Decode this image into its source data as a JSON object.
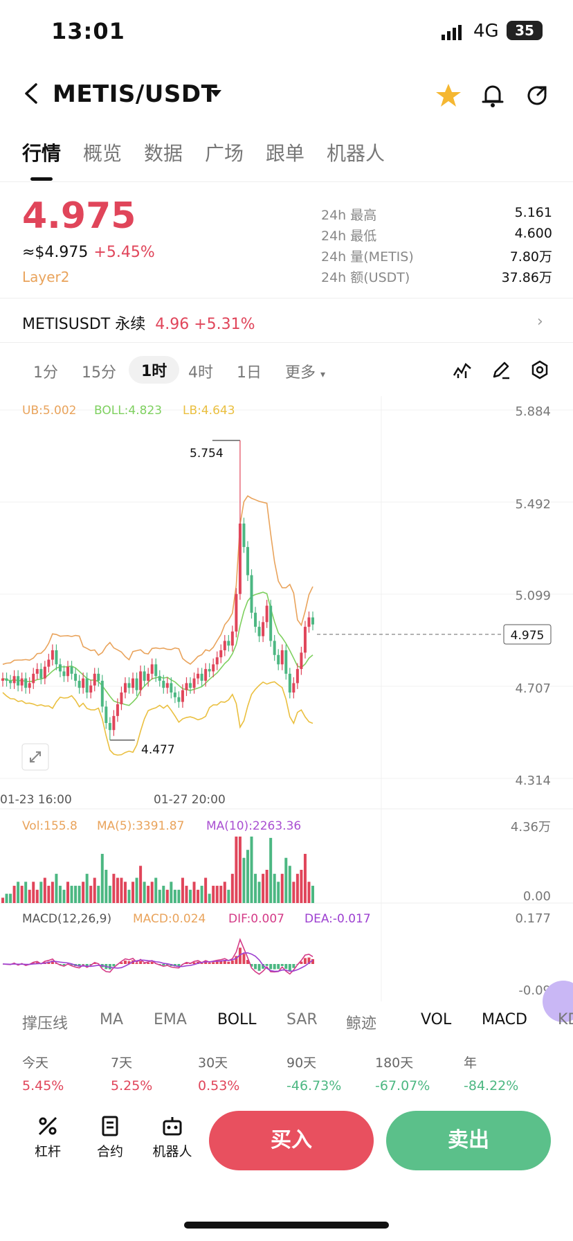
{
  "status": {
    "time": "13:01",
    "network": "4G",
    "battery": "35"
  },
  "header": {
    "pair": "METIS/USDT"
  },
  "tabs": [
    "行情",
    "概览",
    "数据",
    "广场",
    "跟单",
    "机器人"
  ],
  "ticker": {
    "price": "4.975",
    "usd": "≈$4.975",
    "change": "+5.45%",
    "tag": "Layer2",
    "stats": [
      {
        "k": "24h  最高",
        "v": "5.161"
      },
      {
        "k": "24h  最低",
        "v": "4.600"
      },
      {
        "k": "24h  量(METIS)",
        "v": "7.80万"
      },
      {
        "k": "24h  额(USDT)",
        "v": "37.86万"
      }
    ]
  },
  "perp": {
    "name": "METISUSDT 永续",
    "price": "4.96",
    "change": "+5.31%"
  },
  "timeframes": [
    "1分",
    "15分",
    "1时",
    "4时",
    "1日",
    "更多"
  ],
  "active_timeframe": "1时",
  "boll": {
    "ub": "UB:5.002",
    "boll": "BOLL:4.823",
    "lb": "LB:4.643"
  },
  "y_ticks": [
    "5.884",
    "5.492",
    "5.099",
    "4.707",
    "4.314"
  ],
  "current_price": "4.975",
  "high_label": "5.754",
  "low_label": "4.477",
  "x_ticks": [
    "01-23 16:00",
    "01-27 20:00"
  ],
  "vol": {
    "vol": "Vol:155.8",
    "ma5": "MA(5):3391.87",
    "ma10": "MA(10):2263.36",
    "top": "4.36万",
    "bottom": "0.00"
  },
  "macd": {
    "name": "MACD(12,26,9)",
    "macd": "MACD:0.024",
    "dif": "DIF:0.007",
    "dea": "DEA:-0.017",
    "top": "0.177",
    "bottom": "-0.09"
  },
  "indicators": [
    "撑压线",
    "MA",
    "EMA",
    "BOLL",
    "SAR",
    "鲸迹",
    "VOL",
    "MACD",
    "KD"
  ],
  "performance": [
    {
      "k": "今天",
      "v": "5.45%",
      "pos": true
    },
    {
      "k": "7天",
      "v": "5.25%",
      "pos": true
    },
    {
      "k": "30天",
      "v": "0.53%",
      "pos": true
    },
    {
      "k": "90天",
      "v": "-46.73%",
      "pos": false
    },
    {
      "k": "180天",
      "v": "-67.07%",
      "pos": false
    },
    {
      "k": "年",
      "v": "-84.22%",
      "pos": false
    }
  ],
  "bottom_nav": [
    "杠杆",
    "合约",
    "机器人"
  ],
  "actions": {
    "buy": "买入",
    "sell": "卖出"
  },
  "colors": {
    "up": "#e0455a",
    "down": "#4cb782",
    "ub": "#e9a35b",
    "boll": "#7ed05f",
    "lb": "#eabf3f",
    "ma5": "#e9a35b",
    "ma10": "#a94fd1",
    "dif": "#d43a87",
    "dea": "#9c3fd0"
  },
  "chart_data": {
    "type": "candlestick",
    "price_range": [
      4.314,
      5.884
    ],
    "high": 5.754,
    "low": 4.477,
    "last": 4.975,
    "closes": [
      4.74,
      4.73,
      4.72,
      4.75,
      4.71,
      4.74,
      4.7,
      4.72,
      4.76,
      4.78,
      4.74,
      4.79,
      4.82,
      4.86,
      4.8,
      4.77,
      4.75,
      4.79,
      4.76,
      4.73,
      4.7,
      4.74,
      4.68,
      4.71,
      4.76,
      4.73,
      4.62,
      4.55,
      4.52,
      4.58,
      4.63,
      4.68,
      4.72,
      4.7,
      4.74,
      4.69,
      4.77,
      4.73,
      4.76,
      4.8,
      4.75,
      4.73,
      4.7,
      4.72,
      4.68,
      4.66,
      4.64,
      4.69,
      4.72,
      4.7,
      4.74,
      4.76,
      4.73,
      4.78,
      4.77,
      4.8,
      4.83,
      4.86,
      4.9,
      4.88,
      4.94,
      5.1,
      5.4,
      5.3,
      5.18,
      5.02,
      4.96,
      4.92,
      4.98,
      5.05,
      4.9,
      4.84,
      4.8,
      4.86,
      4.76,
      4.68,
      4.72,
      4.78,
      4.85,
      4.96,
      5.0,
      4.97
    ],
    "vol_max": 43600
  }
}
